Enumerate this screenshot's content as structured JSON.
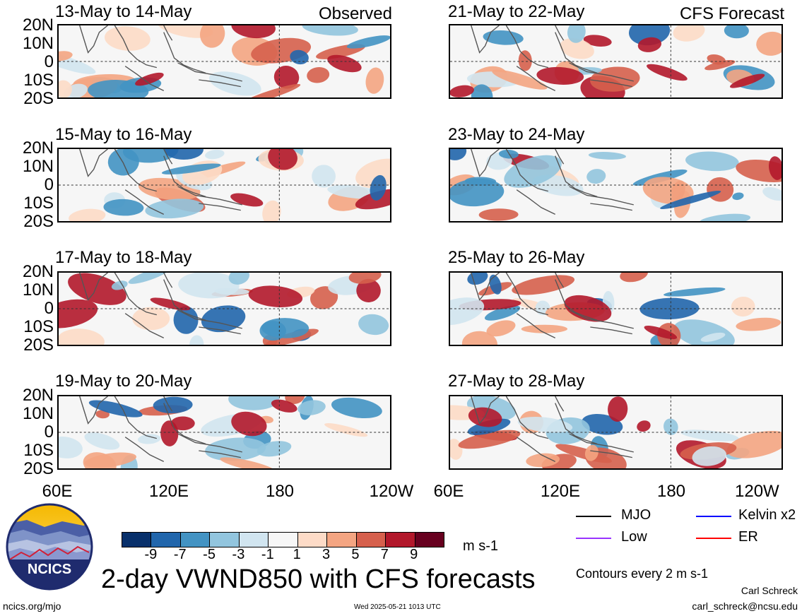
{
  "panels": {
    "left_label": "Observed",
    "right_label": "CFS Forecast",
    "left": [
      {
        "title": "13-May to 14-May"
      },
      {
        "title": "15-May to 16-May"
      },
      {
        "title": "17-May to 18-May"
      },
      {
        "title": "19-May to 20-May"
      }
    ],
    "right": [
      {
        "title": "21-May to 22-May"
      },
      {
        "title": "23-May to 24-May"
      },
      {
        "title": "25-May to 26-May"
      },
      {
        "title": "27-May to 28-May"
      }
    ]
  },
  "axes": {
    "lat_labels": [
      "20N",
      "10N",
      "0",
      "10S",
      "20S"
    ],
    "lon_labels": [
      "60E",
      "120E",
      "180",
      "120W"
    ]
  },
  "colorbar": {
    "colors": [
      "#08306b",
      "#2166ac",
      "#4393c3",
      "#92c5de",
      "#d1e5f0",
      "#f7f7f7",
      "#fddbc7",
      "#f4a582",
      "#d6604d",
      "#b2182b",
      "#67001f"
    ],
    "tick_labels": [
      "-9",
      "-7",
      "-5",
      "-3",
      "-1",
      "1",
      "3",
      "5",
      "7",
      "9"
    ],
    "units": "m s-1"
  },
  "legend": {
    "items": [
      {
        "label": "MJO",
        "color": "#000000"
      },
      {
        "label": "Kelvin x2",
        "color": "#0000ff"
      },
      {
        "label": "Low",
        "color": "#9933ff"
      },
      {
        "label": "ER",
        "color": "#ff0000"
      }
    ],
    "contours_note": "Contours every 2 m s-1"
  },
  "logo": {
    "text": "NCICS"
  },
  "main_title": "2-day VWND850 with CFS forecasts",
  "footer": {
    "left": "ncics.org/mjo",
    "center": "Wed 2025-05-21 1013 UTC",
    "author": "Carl Schreck",
    "email": "carl_schreck@ncsu.edu"
  }
}
